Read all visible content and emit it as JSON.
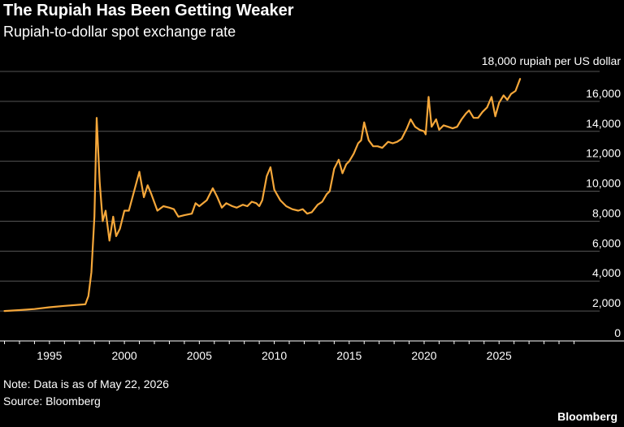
{
  "header": {
    "title": "The Rupiah Has Been Getting Weaker",
    "subtitle": "Rupiah-to-dollar spot exchange rate"
  },
  "footer": {
    "note": "Note: Data is as of May 22, 2026",
    "source": "Source: Bloomberg",
    "brand": "Bloomberg"
  },
  "colors": {
    "background": "#000000",
    "line": "#f5a73a",
    "grid": "#555555",
    "text": "#ffffff"
  },
  "chart_data": {
    "type": "line",
    "title": "The Rupiah Has Been Getting Weaker",
    "subtitle": "Rupiah-to-dollar spot exchange rate",
    "ylabel": "18,000 rupiah per US dollar",
    "xlabel": "",
    "ylim": [
      0,
      18000
    ],
    "xlim": [
      1991.7,
      2030.3
    ],
    "grid": "horizontal",
    "y_axis_side": "right",
    "yticks": [
      0,
      2000,
      4000,
      6000,
      8000,
      10000,
      12000,
      14000,
      16000
    ],
    "ytick_labels": [
      "0",
      "2,000",
      "4,000",
      "6,000",
      "8,000",
      "10,000",
      "12,000",
      "14,000",
      "16,000"
    ],
    "xticks": [
      1995,
      2000,
      2005,
      2010,
      2015,
      2020,
      2025
    ],
    "xtick_labels": [
      "1995",
      "2000",
      "2005",
      "2010",
      "2015",
      "2020",
      "2025"
    ],
    "series": [
      {
        "points": [
          [
            1992.0,
            2000
          ],
          [
            1993.0,
            2060
          ],
          [
            1994.0,
            2130
          ],
          [
            1995.0,
            2250
          ],
          [
            1996.0,
            2340
          ],
          [
            1997.0,
            2420
          ],
          [
            1997.4,
            2450
          ],
          [
            1997.6,
            3000
          ],
          [
            1997.8,
            4600
          ],
          [
            1998.0,
            8300
          ],
          [
            1998.15,
            14900
          ],
          [
            1998.35,
            10600
          ],
          [
            1998.55,
            8000
          ],
          [
            1998.75,
            8700
          ],
          [
            1999.0,
            6700
          ],
          [
            1999.25,
            8300
          ],
          [
            1999.45,
            7000
          ],
          [
            1999.7,
            7500
          ],
          [
            2000.0,
            8700
          ],
          [
            2000.3,
            8700
          ],
          [
            2001.0,
            11300
          ],
          [
            2001.3,
            9600
          ],
          [
            2001.55,
            10400
          ],
          [
            2001.8,
            9800
          ],
          [
            2002.2,
            8700
          ],
          [
            2002.6,
            9000
          ],
          [
            2003.0,
            8900
          ],
          [
            2003.3,
            8800
          ],
          [
            2003.6,
            8300
          ],
          [
            2004.0,
            8400
          ],
          [
            2004.5,
            8500
          ],
          [
            2004.75,
            9200
          ],
          [
            2005.0,
            9000
          ],
          [
            2005.5,
            9400
          ],
          [
            2005.9,
            10200
          ],
          [
            2006.2,
            9600
          ],
          [
            2006.5,
            8900
          ],
          [
            2006.8,
            9200
          ],
          [
            2007.2,
            9000
          ],
          [
            2007.5,
            8900
          ],
          [
            2007.9,
            9100
          ],
          [
            2008.2,
            9000
          ],
          [
            2008.5,
            9300
          ],
          [
            2008.8,
            9200
          ],
          [
            2009.0,
            9000
          ],
          [
            2009.2,
            9400
          ],
          [
            2009.5,
            11000
          ],
          [
            2009.75,
            11600
          ],
          [
            2010.0,
            10100
          ],
          [
            2010.4,
            9400
          ],
          [
            2010.8,
            9000
          ],
          [
            2011.2,
            8800
          ],
          [
            2011.6,
            8700
          ],
          [
            2011.9,
            8800
          ],
          [
            2012.2,
            8500
          ],
          [
            2012.5,
            8600
          ],
          [
            2012.9,
            9100
          ],
          [
            2013.2,
            9300
          ],
          [
            2013.5,
            9800
          ],
          [
            2013.7,
            10000
          ],
          [
            2014.0,
            11500
          ],
          [
            2014.3,
            12100
          ],
          [
            2014.55,
            11200
          ],
          [
            2014.8,
            11800
          ],
          [
            2015.0,
            12000
          ],
          [
            2015.3,
            12500
          ],
          [
            2015.6,
            13200
          ],
          [
            2015.8,
            13400
          ],
          [
            2016.0,
            14600
          ],
          [
            2016.3,
            13400
          ],
          [
            2016.6,
            13000
          ],
          [
            2016.9,
            13000
          ],
          [
            2017.2,
            12900
          ],
          [
            2017.6,
            13300
          ],
          [
            2017.9,
            13200
          ],
          [
            2018.2,
            13300
          ],
          [
            2018.5,
            13500
          ],
          [
            2018.85,
            14200
          ],
          [
            2019.1,
            14800
          ],
          [
            2019.4,
            14300
          ],
          [
            2019.7,
            14100
          ],
          [
            2020.0,
            14000
          ],
          [
            2020.1,
            13800
          ],
          [
            2020.3,
            16300
          ],
          [
            2020.5,
            14300
          ],
          [
            2020.8,
            14800
          ],
          [
            2021.0,
            14100
          ],
          [
            2021.3,
            14400
          ],
          [
            2021.6,
            14300
          ],
          [
            2021.9,
            14200
          ],
          [
            2022.2,
            14300
          ],
          [
            2022.5,
            14800
          ],
          [
            2022.8,
            15200
          ],
          [
            2023.0,
            15400
          ],
          [
            2023.3,
            14900
          ],
          [
            2023.6,
            14900
          ],
          [
            2023.9,
            15300
          ],
          [
            2024.2,
            15600
          ],
          [
            2024.5,
            16300
          ],
          [
            2024.75,
            15000
          ],
          [
            2025.0,
            15900
          ],
          [
            2025.3,
            16400
          ],
          [
            2025.55,
            16100
          ],
          [
            2025.8,
            16500
          ],
          [
            2026.1,
            16700
          ],
          [
            2026.4,
            17500
          ]
        ]
      }
    ]
  }
}
